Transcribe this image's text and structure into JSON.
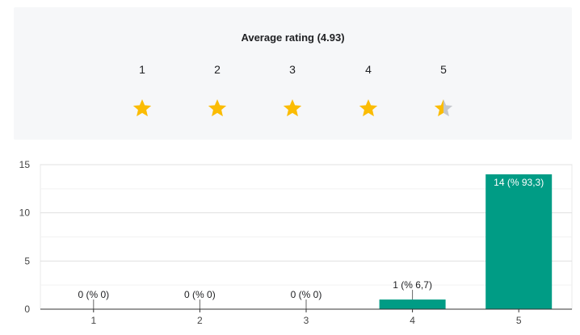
{
  "rating": {
    "title": "Average rating (4.93)",
    "average": 4.93,
    "star_color": "#fbbc04",
    "star_empty_color": "#c4c7cc",
    "stars": [
      {
        "label": "1",
        "fill": 1
      },
      {
        "label": "2",
        "fill": 1
      },
      {
        "label": "3",
        "fill": 1
      },
      {
        "label": "4",
        "fill": 1
      },
      {
        "label": "5",
        "fill": 0.5
      }
    ]
  },
  "chart_data": {
    "type": "bar",
    "categories": [
      "1",
      "2",
      "3",
      "4",
      "5"
    ],
    "values": [
      0,
      0,
      0,
      1,
      14
    ],
    "data_labels": [
      "0 (% 0)",
      "0 (% 0)",
      "0 (% 0)",
      "1 (% 6,7)",
      "14 (% 93,3)"
    ],
    "ylim": [
      0,
      15
    ],
    "yticks": [
      "0",
      "5",
      "10",
      "15"
    ],
    "grid": true,
    "bar_color": "#009c85"
  }
}
